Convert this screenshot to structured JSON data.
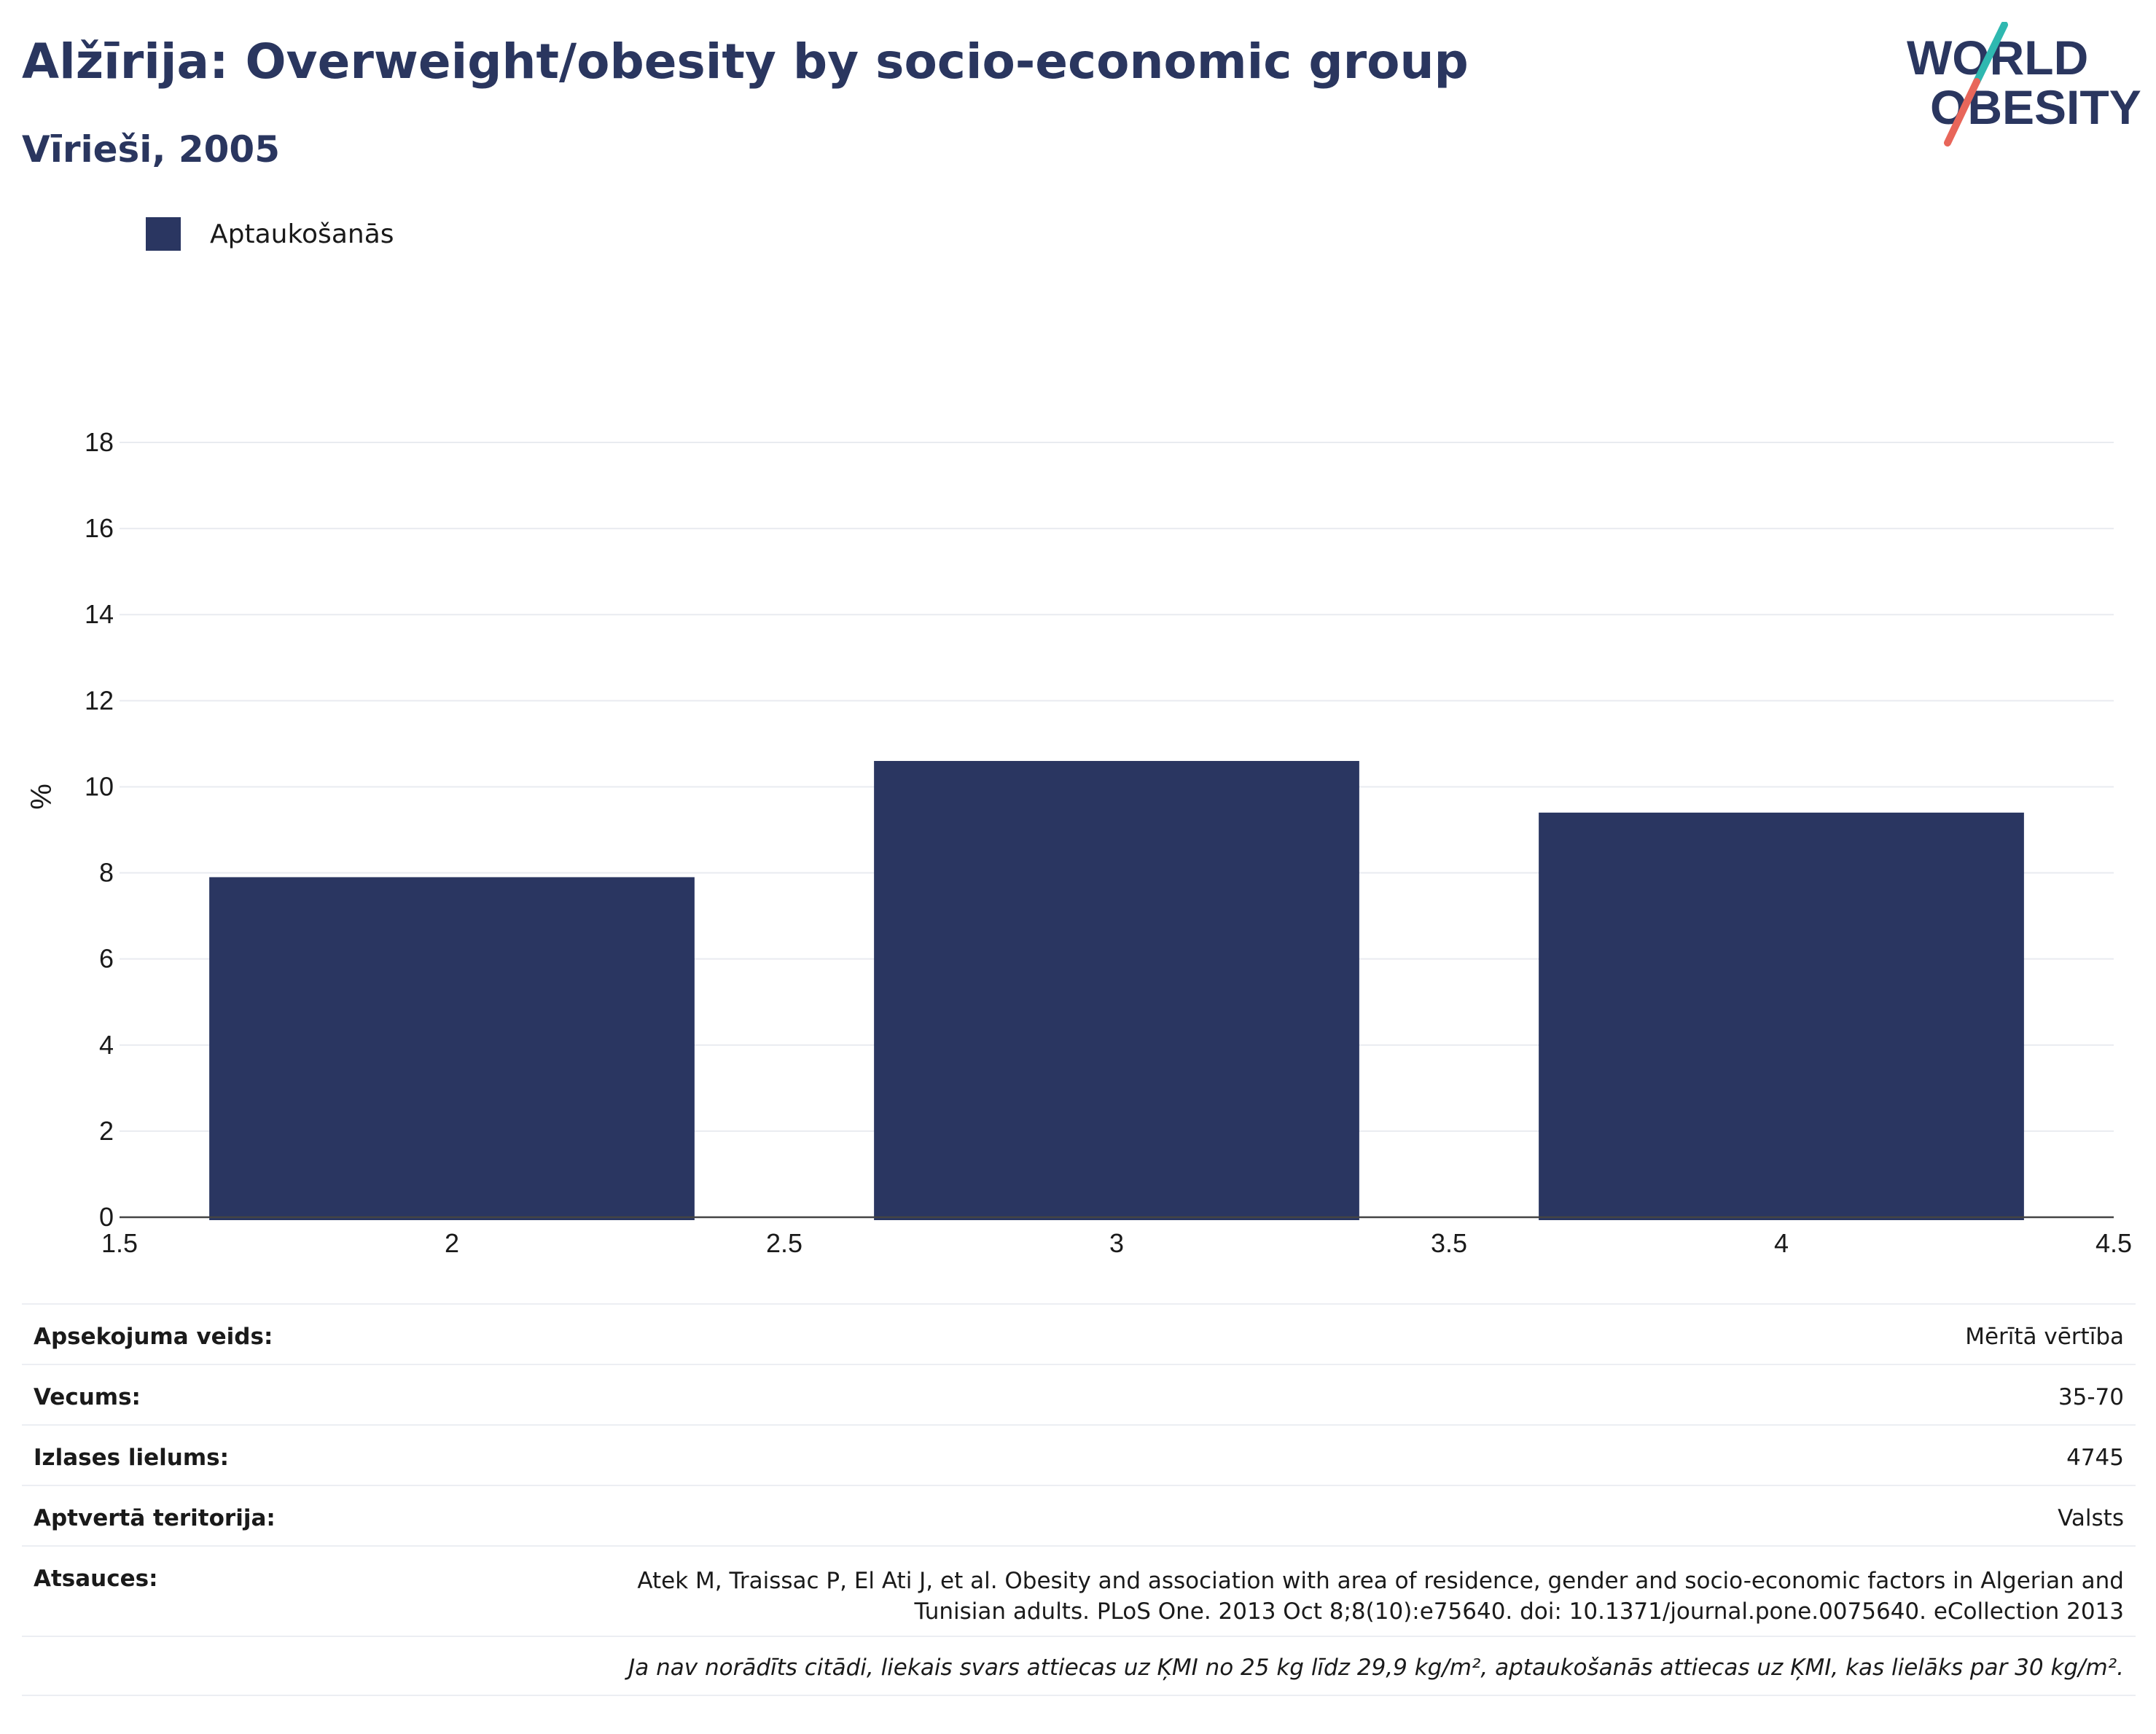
{
  "header": {
    "title": "Alžīrija: Overweight/obesity by socio-economic group",
    "subtitle": "Vīrieši, 2005"
  },
  "logo": {
    "line1": "WORLD",
    "line2": "OBESITY",
    "colors": {
      "text": "#2a365f",
      "slash_top": "#2fb8b0",
      "slash_bottom": "#e8665a"
    }
  },
  "legend": {
    "items": [
      {
        "label": "Aptaukošanās",
        "color": "#2a3661"
      }
    ]
  },
  "chart_data": {
    "type": "bar",
    "title": "",
    "xlabel": "",
    "ylabel": "%",
    "xlim": [
      1.5,
      4.5
    ],
    "ylim": [
      0,
      18
    ],
    "x_ticks": [
      1.5,
      2,
      2.5,
      3,
      3.5,
      4,
      4.5
    ],
    "y_ticks": [
      0,
      2,
      4,
      6,
      8,
      10,
      12,
      14,
      16,
      18
    ],
    "grid": true,
    "legend_position": "top-left",
    "series": [
      {
        "name": "Aptaukošanās",
        "color": "#2a3661",
        "points": [
          {
            "x": 2,
            "y": 7.9
          },
          {
            "x": 3,
            "y": 10.6
          },
          {
            "x": 4,
            "y": 9.4
          }
        ]
      }
    ]
  },
  "info_table": {
    "survey_type_label": "Apsekojuma veids:",
    "survey_type_value": "Mērītā vērtība",
    "age_label": "Vecums:",
    "age_value": "35-70",
    "sample_size_label": "Izlases lielums:",
    "sample_size_value": "4745",
    "territory_label": "Aptvertā teritorija:",
    "territory_value": "Valsts",
    "references_label": "Atsauces:",
    "references_value": "Atek M, Traissac P, El Ati J, et al. Obesity and association with area of residence, gender and socio-economic factors in Algerian and Tunisian adults. PLoS One. 2013 Oct 8;8(10):e75640. doi: 10.1371/journal.pone.0075640. eCollection 2013",
    "note": "Ja nav norādīts citādi, liekais svars attiecas uz ĶMI no 25 kg līdz 29,9 kg/m², aptaukošanās attiecas uz ĶMI, kas lielāks par 30 kg/m²."
  }
}
